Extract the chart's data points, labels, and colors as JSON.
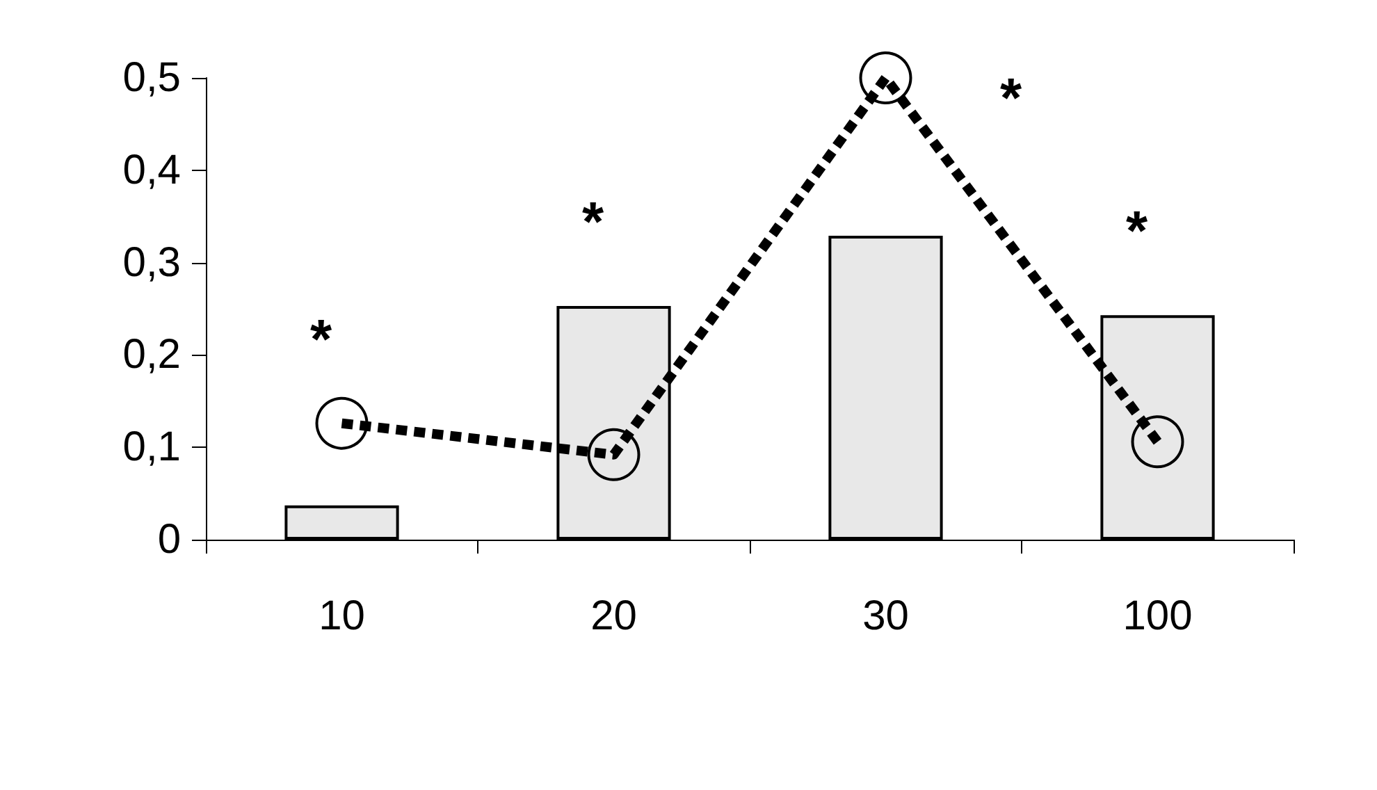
{
  "chart_data": {
    "type": "bar",
    "categories": [
      "10",
      "20",
      "30",
      "100"
    ],
    "series": [
      {
        "color": "#e8e8e8",
        "values": [
          0.037,
          0.253,
          0.329,
          0.243
        ]
      },
      {
        "type": "line",
        "color": "#000000",
        "values": [
          0.126,
          0.092,
          0.5,
          0.106
        ],
        "marker": "circle",
        "line_style": "dashed"
      }
    ],
    "ylim": [
      0,
      0.5
    ],
    "yticks": [
      0,
      {
        "value": 0.1,
        "label": "0,1"
      },
      {
        "value": 0.2,
        "label": "0,2"
      },
      {
        "value": 0.3,
        "label": "0,3"
      },
      {
        "value": 0.4,
        "label": "0,4"
      },
      {
        "value": 0.5,
        "label": "0,5"
      }
    ],
    "grid": false,
    "annotations": [
      "*",
      "*",
      "*",
      "*"
    ]
  }
}
